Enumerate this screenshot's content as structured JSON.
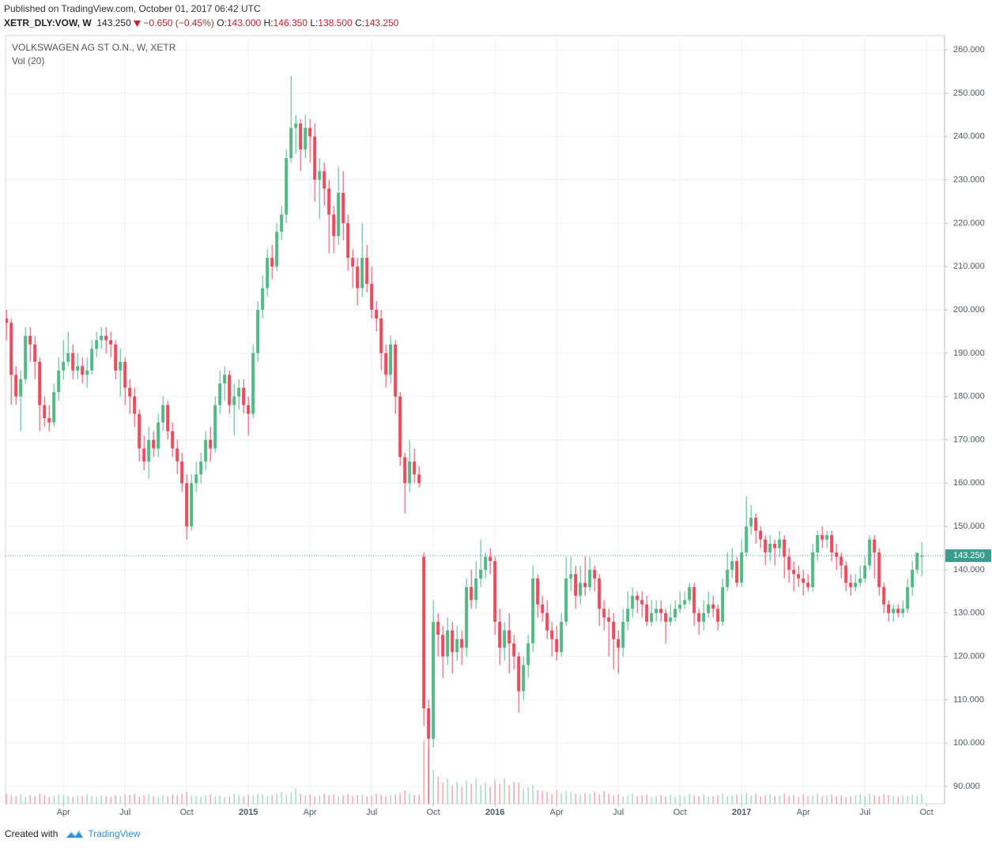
{
  "header": {
    "published": "Published on TradingView.com, October 01, 2017 06:42 UTC",
    "symbol": "XETR_DLY:VOW, W",
    "last": "143.250",
    "change": "−0.650 (−0.45%)",
    "open_label": "O:",
    "open": "143.000",
    "high_label": "H:",
    "high": "146.350",
    "low_label": "L:",
    "low": "138.500",
    "close_label": "C:",
    "close": "143.250"
  },
  "chart_data": {
    "type": "candlestick",
    "title": "VOLKSWAGEN AG ST O.N., W, XETR",
    "volume_label": "Vol (20)",
    "up_color": "#53b987",
    "down_color": "#eb4d5c",
    "volume_up_color": "#a9dcc3",
    "volume_down_color": "#f5a9b0",
    "grid": true,
    "ylim": [
      86,
      263.3
    ],
    "yticks": [
      {
        "value": 90,
        "label": "90.000"
      },
      {
        "value": 100,
        "label": "100.000"
      },
      {
        "value": 110,
        "label": "110.000"
      },
      {
        "value": 120,
        "label": "120.000"
      },
      {
        "value": 130,
        "label": "130.000"
      },
      {
        "value": 140,
        "label": "140.000"
      },
      {
        "value": 150,
        "label": "150.000"
      },
      {
        "value": 160,
        "label": "160.000"
      },
      {
        "value": 170,
        "label": "170.000"
      },
      {
        "value": 180,
        "label": "180.000"
      },
      {
        "value": 190,
        "label": "190.000"
      },
      {
        "value": 200,
        "label": "200.000"
      },
      {
        "value": 210,
        "label": "210.000"
      },
      {
        "value": 220,
        "label": "220.000"
      },
      {
        "value": 230,
        "label": "230.000"
      },
      {
        "value": 240,
        "label": "240.000"
      },
      {
        "value": 250,
        "label": "250.000"
      },
      {
        "value": 260,
        "label": "260.000"
      }
    ],
    "xlim": [
      -0.2,
      197.8
    ],
    "xticks": [
      {
        "value": 12,
        "label": "Apr"
      },
      {
        "value": 25,
        "label": "Jul"
      },
      {
        "value": 38,
        "label": "Oct"
      },
      {
        "value": 51,
        "label": "2015"
      },
      {
        "value": 64,
        "label": "Apr"
      },
      {
        "value": 77,
        "label": "Jul"
      },
      {
        "value": 90,
        "label": "Oct"
      },
      {
        "value": 103,
        "label": "2016"
      },
      {
        "value": 116,
        "label": "Apr"
      },
      {
        "value": 129,
        "label": "Jul"
      },
      {
        "value": 142,
        "label": "Oct"
      },
      {
        "value": 155,
        "label": "2017"
      },
      {
        "value": 168,
        "label": "Apr"
      },
      {
        "value": 181,
        "label": "Jul"
      },
      {
        "value": 194,
        "label": "Oct"
      }
    ],
    "last_price": {
      "value": 143.25,
      "label": "143.250",
      "color": "#3c9d8f"
    },
    "open": [
      198,
      197,
      185,
      180,
      184,
      194,
      192,
      188,
      178,
      175,
      174,
      181,
      186,
      188,
      190,
      186,
      187,
      185,
      186,
      191,
      193,
      194,
      193,
      192,
      186,
      188,
      182,
      180,
      176,
      168,
      165,
      170,
      168,
      174,
      178,
      172,
      168,
      165,
      160,
      150,
      160,
      162,
      165,
      170,
      168,
      178,
      183,
      185,
      178,
      180,
      182,
      178,
      176,
      190,
      200,
      205,
      212,
      210,
      218,
      222,
      235,
      242,
      243,
      237,
      242,
      240,
      230,
      232,
      228,
      222,
      217,
      227,
      220,
      212,
      210,
      205,
      212,
      206,
      200,
      198,
      190,
      185,
      192,
      180,
      166,
      160,
      165,
      162,
      143,
      108,
      101,
      128,
      125,
      120,
      126,
      121,
      124,
      122,
      136,
      133,
      138,
      140,
      143,
      142,
      128,
      122,
      126,
      123,
      120,
      112,
      118,
      123,
      138,
      132,
      130,
      126,
      124,
      121,
      128,
      138,
      139,
      134,
      137,
      136,
      140,
      138,
      131,
      129,
      128,
      124,
      122,
      128,
      131,
      134,
      133,
      132,
      128,
      130,
      131,
      130,
      128,
      129,
      131,
      132,
      133,
      136,
      130,
      128,
      130,
      132,
      131,
      128,
      136,
      140,
      142,
      137,
      144,
      150,
      152,
      149,
      147,
      144,
      146,
      145,
      147,
      143,
      140,
      139,
      138,
      137,
      136,
      144,
      148,
      147,
      148,
      144,
      143,
      141,
      137,
      136,
      137,
      138,
      141,
      147,
      144,
      136,
      132,
      130,
      131,
      130,
      131,
      136,
      140,
      143
    ],
    "high": [
      200,
      198,
      187,
      186,
      196,
      196,
      194,
      189,
      180,
      178,
      183,
      189,
      193,
      195,
      192,
      190,
      189,
      189,
      193,
      195,
      196,
      196,
      195,
      193,
      191,
      189,
      184,
      182,
      177,
      171,
      173,
      172,
      176,
      180,
      179,
      174,
      170,
      167,
      162,
      162,
      165,
      167,
      172,
      173,
      180,
      186,
      187,
      186,
      183,
      184,
      184,
      180,
      192,
      202,
      208,
      214,
      215,
      220,
      224,
      237,
      254,
      245,
      244,
      245,
      244,
      243,
      235,
      234,
      230,
      224,
      233,
      232,
      222,
      214,
      212,
      220,
      215,
      210,
      202,
      200,
      192,
      194,
      193,
      181,
      167,
      170,
      168,
      164,
      144,
      110,
      133,
      130,
      127,
      129,
      128,
      127,
      126,
      138,
      140,
      142,
      147,
      144,
      145,
      143,
      131,
      128,
      130,
      125,
      121,
      120,
      125,
      141,
      139,
      134,
      133,
      128,
      127,
      130,
      143,
      143,
      141,
      141,
      143,
      143,
      141,
      139,
      133,
      131,
      130,
      126,
      131,
      135,
      136,
      135,
      135,
      134,
      133,
      133,
      133,
      131,
      132,
      133,
      135,
      135,
      137,
      137,
      131,
      133,
      135,
      134,
      132,
      138,
      144,
      145,
      143,
      147,
      157,
      155,
      153,
      150,
      148,
      148,
      147,
      149,
      148,
      145,
      142,
      141,
      140,
      139,
      146,
      149,
      150,
      149,
      149,
      146,
      144,
      142,
      139,
      139,
      141,
      143,
      148,
      148,
      145,
      137,
      133,
      132,
      132,
      133,
      138,
      142,
      144,
      146.35
    ],
    "low": [
      193,
      178,
      178,
      172,
      183,
      188,
      184,
      172,
      173,
      172,
      173,
      179,
      184,
      187,
      184,
      184,
      183,
      182,
      185,
      189,
      191,
      190,
      189,
      184,
      180,
      178,
      176,
      173,
      165,
      163,
      161,
      166,
      166,
      172,
      170,
      166,
      162,
      158,
      147,
      149,
      158,
      160,
      163,
      165,
      167,
      176,
      179,
      176,
      171,
      177,
      176,
      171,
      175,
      188,
      198,
      203,
      207,
      209,
      216,
      220,
      234,
      236,
      232,
      235,
      234,
      225,
      221,
      224,
      213,
      213,
      215,
      216,
      209,
      205,
      201,
      203,
      204,
      198,
      195,
      186,
      182,
      183,
      176,
      164,
      153,
      158,
      160,
      159,
      104,
      86,
      99,
      120,
      115,
      118,
      116,
      119,
      118,
      120,
      131,
      131,
      136,
      138,
      139,
      125,
      118,
      119,
      116,
      117,
      107,
      110,
      115,
      121,
      129,
      128,
      124,
      120,
      119,
      120,
      127,
      135,
      131,
      132,
      134,
      135,
      135,
      127,
      126,
      120,
      117,
      116,
      120,
      126,
      129,
      130,
      129,
      127,
      127,
      128,
      128,
      123,
      127,
      128,
      130,
      131,
      132,
      127,
      125,
      126,
      129,
      129,
      126,
      127,
      135,
      138,
      136,
      136,
      143,
      148,
      146,
      145,
      141,
      142,
      141,
      143,
      138,
      137,
      135,
      136,
      134,
      135,
      135,
      142,
      145,
      145,
      142,
      140,
      138,
      135,
      134,
      135,
      136,
      137,
      140,
      138,
      134,
      130,
      128,
      128,
      129,
      129,
      130,
      134,
      139,
      138.5
    ],
    "close": [
      197,
      185,
      180,
      184,
      194,
      192,
      188,
      178,
      175,
      174,
      181,
      186,
      188,
      190,
      186,
      187,
      185,
      186,
      191,
      193,
      194,
      193,
      192,
      186,
      188,
      182,
      180,
      176,
      168,
      165,
      170,
      168,
      174,
      178,
      172,
      168,
      165,
      160,
      150,
      160,
      162,
      165,
      170,
      168,
      178,
      183,
      185,
      178,
      180,
      182,
      178,
      176,
      190,
      200,
      205,
      212,
      210,
      218,
      222,
      235,
      242,
      243,
      237,
      242,
      240,
      230,
      232,
      228,
      222,
      217,
      227,
      220,
      212,
      210,
      205,
      212,
      206,
      200,
      198,
      190,
      185,
      192,
      180,
      166,
      160,
      165,
      162,
      160,
      108,
      101,
      128,
      125,
      120,
      126,
      121,
      124,
      122,
      136,
      133,
      138,
      140,
      143,
      142,
      128,
      122,
      126,
      123,
      120,
      112,
      118,
      123,
      138,
      132,
      130,
      126,
      124,
      121,
      128,
      138,
      139,
      134,
      137,
      136,
      140,
      138,
      131,
      129,
      128,
      124,
      122,
      128,
      131,
      134,
      133,
      132,
      128,
      130,
      131,
      130,
      128,
      129,
      131,
      132,
      133,
      136,
      130,
      128,
      130,
      132,
      131,
      128,
      136,
      140,
      142,
      137,
      144,
      150,
      152,
      149,
      147,
      144,
      146,
      145,
      147,
      143,
      140,
      139,
      138,
      137,
      136,
      144,
      148,
      147,
      148,
      144,
      143,
      141,
      137,
      136,
      137,
      138,
      141,
      147,
      144,
      136,
      132,
      130,
      131,
      130,
      131,
      136,
      140,
      143.9,
      143.25
    ],
    "volume": [
      12,
      10,
      9,
      11,
      8,
      10,
      9,
      12,
      10,
      8,
      9,
      11,
      10,
      9,
      8,
      10,
      9,
      11,
      9,
      8,
      10,
      9,
      8,
      10,
      9,
      11,
      10,
      12,
      9,
      10,
      11,
      9,
      8,
      10,
      9,
      11,
      10,
      12,
      14,
      10,
      9,
      8,
      10,
      11,
      9,
      10,
      8,
      9,
      12,
      10,
      9,
      11,
      10,
      12,
      11,
      9,
      10,
      12,
      14,
      11,
      13,
      18,
      12,
      10,
      11,
      9,
      10,
      12,
      10,
      11,
      9,
      10,
      12,
      9,
      10,
      11,
      9,
      10,
      12,
      11,
      9,
      10,
      11,
      13,
      16,
      12,
      10,
      11,
      75,
      68,
      40,
      32,
      25,
      30,
      22,
      26,
      20,
      28,
      24,
      30,
      22,
      25,
      20,
      28,
      24,
      30,
      22,
      26,
      25,
      18,
      20,
      22,
      16,
      15,
      14,
      12,
      16,
      13,
      15,
      14,
      12,
      11,
      13,
      12,
      14,
      11,
      15,
      12,
      10,
      11,
      9,
      10,
      12,
      9,
      10,
      11,
      8,
      9,
      10,
      9,
      11,
      8,
      10,
      9,
      12,
      10,
      9,
      11,
      8,
      9,
      10,
      12,
      9,
      10,
      11,
      11,
      13,
      10,
      12,
      9,
      10,
      11,
      9,
      10,
      12,
      9,
      10,
      8,
      11,
      9,
      10,
      12,
      9,
      10,
      11,
      9,
      10,
      8,
      9,
      10,
      11,
      9,
      12,
      10,
      9,
      11,
      10,
      9,
      8,
      10,
      9,
      11,
      10,
      12
    ]
  },
  "footer": {
    "created": "Created with",
    "brand": "TradingView"
  }
}
